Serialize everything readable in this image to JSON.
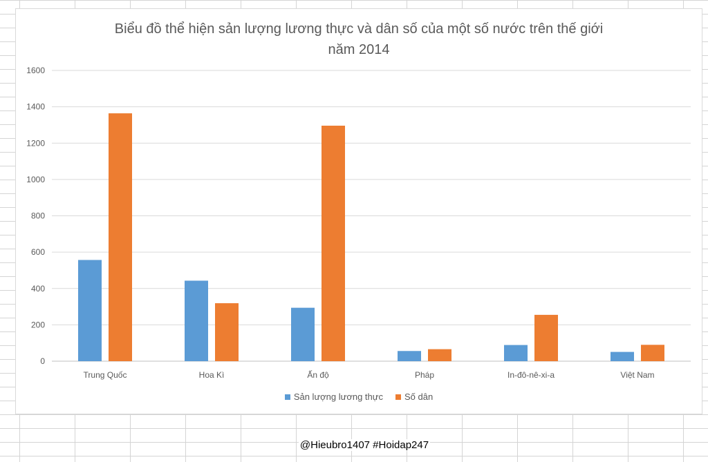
{
  "chart_data": {
    "type": "bar",
    "title": "Biểu đồ thể hiện sản lượng lương thực và dân số của một số nước trên thế giới",
    "title_line2": "năm 2014",
    "categories": [
      "Trung Quốc",
      "Hoa Kì",
      "Ấn độ",
      "Pháp",
      "In-đô-nê-xi-a",
      "Việt Nam"
    ],
    "series": [
      {
        "name": "Sản lượng lương thực",
        "color": "#5b9bd5",
        "values": [
          557,
          443,
          294,
          56,
          89,
          51
        ]
      },
      {
        "name": "Số dân",
        "color": "#ed7d31",
        "values": [
          1364,
          319,
          1296,
          66,
          255,
          90
        ]
      }
    ],
    "ylim": [
      0,
      1600
    ],
    "yticks": [
      0,
      200,
      400,
      600,
      800,
      1000,
      1200,
      1400,
      1600
    ],
    "grid": true,
    "legend_position": "bottom"
  },
  "watermark": "@Hieubro1407 #Hoidap247"
}
